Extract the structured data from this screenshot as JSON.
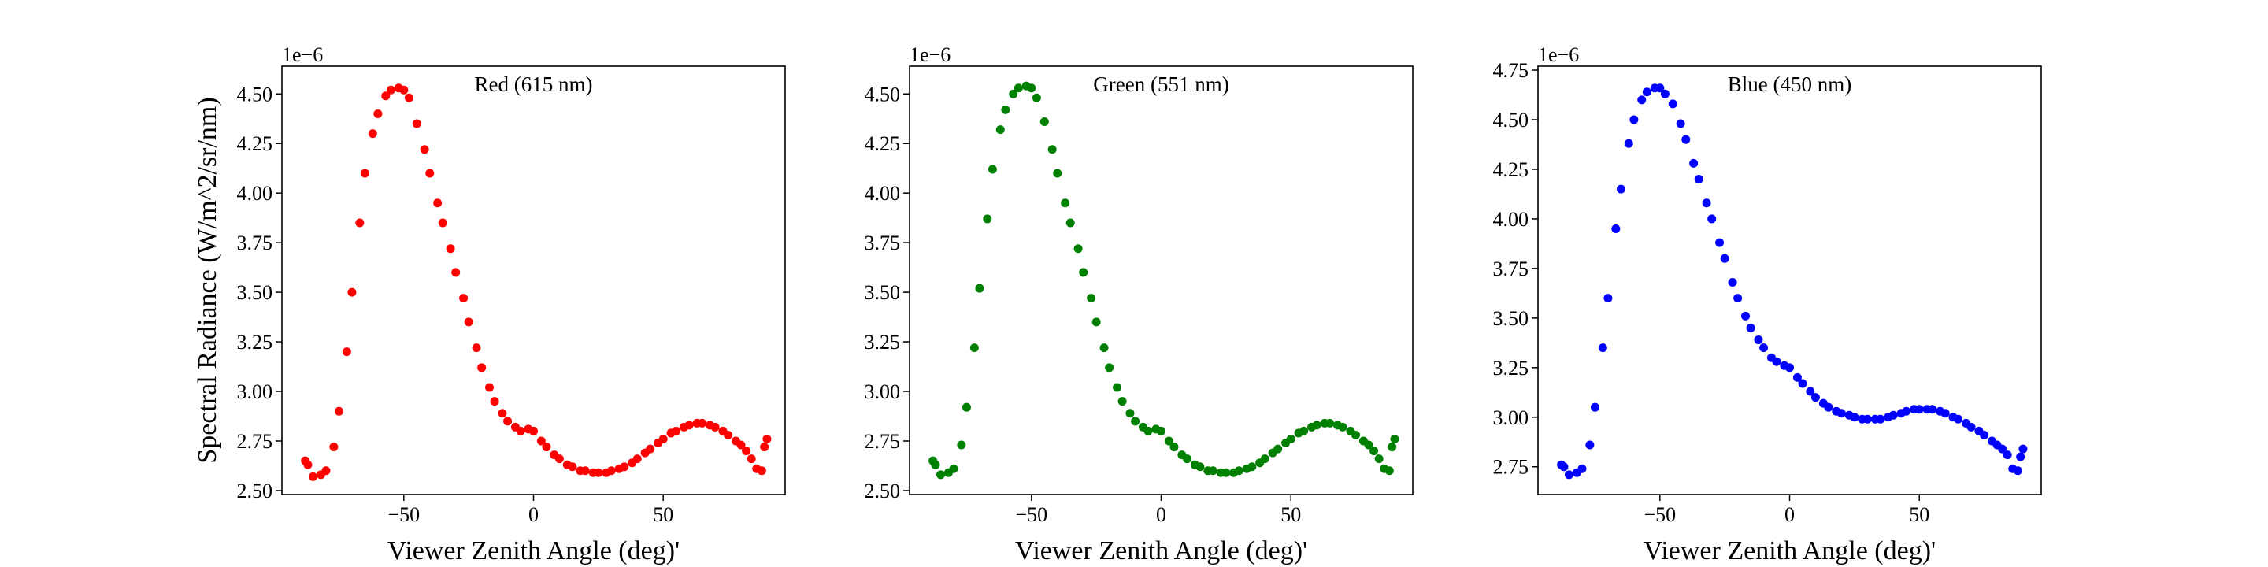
{
  "chart_data": [
    {
      "type": "scatter",
      "title": "Red (615 nm)",
      "color": "#ff0000",
      "offset_text": "1e−6",
      "ylabel": "Spectral Radiance (W/m^2/sr/nm)",
      "xlabel": "Viewer Zenith Angle (deg)'",
      "xlim": [
        -97,
        97
      ],
      "ylim": [
        2.48,
        4.64
      ],
      "xticks": [
        {
          "value": -50,
          "label": "−50"
        },
        0,
        50
      ],
      "yticks": [
        {
          "value": 2.5,
          "label": "2.50"
        },
        2.75,
        {
          "value": 3.0,
          "label": "3.00"
        },
        3.25,
        {
          "value": 3.5,
          "label": "3.50"
        },
        3.75,
        {
          "value": 4.0,
          "label": "4.00"
        },
        4.25,
        {
          "value": 4.5,
          "label": "4.50"
        }
      ],
      "x": [
        -88,
        -87,
        -85,
        -82,
        -80,
        -77,
        -75,
        -72,
        -70,
        -67,
        -65,
        -62,
        -60,
        -57,
        -55,
        -52,
        -50,
        -48,
        -45,
        -42,
        -40,
        -37,
        -35,
        -32,
        -30,
        -27,
        -25,
        -22,
        -20,
        -17,
        -15,
        -12,
        -10,
        -7,
        -5,
        -2,
        0,
        3,
        5,
        8,
        10,
        13,
        15,
        18,
        20,
        23,
        25,
        28,
        30,
        33,
        35,
        38,
        40,
        43,
        45,
        48,
        50,
        53,
        55,
        58,
        60,
        63,
        65,
        68,
        70,
        73,
        75,
        78,
        80,
        82,
        84,
        86,
        88,
        89,
        90
      ],
      "y": [
        2.65,
        2.63,
        2.57,
        2.58,
        2.6,
        2.72,
        2.9,
        3.2,
        3.5,
        3.85,
        4.1,
        4.3,
        4.4,
        4.49,
        4.52,
        4.53,
        4.52,
        4.48,
        4.35,
        4.22,
        4.1,
        3.95,
        3.85,
        3.72,
        3.6,
        3.47,
        3.35,
        3.22,
        3.12,
        3.02,
        2.95,
        2.89,
        2.85,
        2.82,
        2.8,
        2.81,
        2.8,
        2.75,
        2.72,
        2.68,
        2.66,
        2.63,
        2.62,
        2.6,
        2.6,
        2.59,
        2.59,
        2.59,
        2.6,
        2.61,
        2.62,
        2.64,
        2.66,
        2.69,
        2.71,
        2.74,
        2.76,
        2.79,
        2.8,
        2.82,
        2.83,
        2.84,
        2.84,
        2.83,
        2.82,
        2.8,
        2.78,
        2.75,
        2.73,
        2.7,
        2.66,
        2.61,
        2.6,
        2.72,
        2.76
      ]
    },
    {
      "type": "scatter",
      "title": "Green (551 nm)",
      "color": "#008000",
      "offset_text": "1e−6",
      "xlabel": "Viewer Zenith Angle (deg)'",
      "xlim": [
        -97,
        97
      ],
      "ylim": [
        2.48,
        4.64
      ],
      "xticks": [
        {
          "value": -50,
          "label": "−50"
        },
        0,
        50
      ],
      "yticks": [
        {
          "value": 2.5,
          "label": "2.50"
        },
        2.75,
        {
          "value": 3.0,
          "label": "3.00"
        },
        3.25,
        {
          "value": 3.5,
          "label": "3.50"
        },
        3.75,
        {
          "value": 4.0,
          "label": "4.00"
        },
        4.25,
        {
          "value": 4.5,
          "label": "4.50"
        }
      ],
      "x": [
        -88,
        -87,
        -85,
        -82,
        -80,
        -77,
        -75,
        -72,
        -70,
        -67,
        -65,
        -62,
        -60,
        -57,
        -55,
        -52,
        -50,
        -48,
        -45,
        -42,
        -40,
        -37,
        -35,
        -32,
        -30,
        -27,
        -25,
        -22,
        -20,
        -17,
        -15,
        -12,
        -10,
        -7,
        -5,
        -2,
        0,
        3,
        5,
        8,
        10,
        13,
        15,
        18,
        20,
        23,
        25,
        28,
        30,
        33,
        35,
        38,
        40,
        43,
        45,
        48,
        50,
        53,
        55,
        58,
        60,
        63,
        65,
        68,
        70,
        73,
        75,
        78,
        80,
        82,
        84,
        86,
        88,
        89,
        90
      ],
      "y": [
        2.65,
        2.63,
        2.58,
        2.59,
        2.61,
        2.73,
        2.92,
        3.22,
        3.52,
        3.87,
        4.12,
        4.32,
        4.42,
        4.5,
        4.53,
        4.54,
        4.53,
        4.48,
        4.36,
        4.22,
        4.1,
        3.95,
        3.85,
        3.72,
        3.6,
        3.47,
        3.35,
        3.22,
        3.12,
        3.02,
        2.95,
        2.89,
        2.85,
        2.82,
        2.8,
        2.81,
        2.8,
        2.75,
        2.72,
        2.68,
        2.66,
        2.63,
        2.62,
        2.6,
        2.6,
        2.59,
        2.59,
        2.59,
        2.6,
        2.61,
        2.62,
        2.64,
        2.66,
        2.69,
        2.71,
        2.74,
        2.76,
        2.79,
        2.8,
        2.82,
        2.83,
        2.84,
        2.84,
        2.83,
        2.82,
        2.8,
        2.78,
        2.75,
        2.73,
        2.7,
        2.66,
        2.61,
        2.6,
        2.72,
        2.76
      ]
    },
    {
      "type": "scatter",
      "title": "Blue (450 nm)",
      "color": "#0000ff",
      "offset_text": "1e−6",
      "xlabel": "Viewer Zenith Angle (deg)'",
      "xlim": [
        -97,
        97
      ],
      "ylim": [
        2.61,
        4.77
      ],
      "xticks": [
        {
          "value": -50,
          "label": "−50"
        },
        0,
        50
      ],
      "yticks": [
        2.75,
        {
          "value": 3.0,
          "label": "3.00"
        },
        3.25,
        {
          "value": 3.5,
          "label": "3.50"
        },
        3.75,
        {
          "value": 4.0,
          "label": "4.00"
        },
        4.25,
        {
          "value": 4.5,
          "label": "4.50"
        },
        4.75
      ],
      "x": [
        -88,
        -87,
        -85,
        -82,
        -80,
        -77,
        -75,
        -72,
        -70,
        -67,
        -65,
        -62,
        -60,
        -57,
        -55,
        -52,
        -50,
        -48,
        -45,
        -42,
        -40,
        -37,
        -35,
        -32,
        -30,
        -27,
        -25,
        -22,
        -20,
        -17,
        -15,
        -12,
        -10,
        -7,
        -5,
        -2,
        0,
        3,
        5,
        8,
        10,
        13,
        15,
        18,
        20,
        23,
        25,
        28,
        30,
        33,
        35,
        38,
        40,
        43,
        45,
        48,
        50,
        53,
        55,
        58,
        60,
        63,
        65,
        68,
        70,
        73,
        75,
        78,
        80,
        82,
        84,
        86,
        88,
        89,
        90
      ],
      "y": [
        2.76,
        2.75,
        2.71,
        2.72,
        2.74,
        2.86,
        3.05,
        3.35,
        3.6,
        3.95,
        4.15,
        4.38,
        4.5,
        4.6,
        4.64,
        4.66,
        4.66,
        4.63,
        4.58,
        4.48,
        4.4,
        4.28,
        4.2,
        4.08,
        4.0,
        3.88,
        3.8,
        3.68,
        3.6,
        3.51,
        3.45,
        3.39,
        3.35,
        3.3,
        3.28,
        3.26,
        3.25,
        3.2,
        3.17,
        3.13,
        3.1,
        3.07,
        3.05,
        3.03,
        3.02,
        3.01,
        3.0,
        2.99,
        2.99,
        2.99,
        2.99,
        3.0,
        3.01,
        3.02,
        3.03,
        3.04,
        3.04,
        3.04,
        3.04,
        3.03,
        3.02,
        3.0,
        2.99,
        2.97,
        2.95,
        2.93,
        2.91,
        2.88,
        2.86,
        2.84,
        2.81,
        2.74,
        2.73,
        2.8,
        2.84
      ]
    }
  ]
}
